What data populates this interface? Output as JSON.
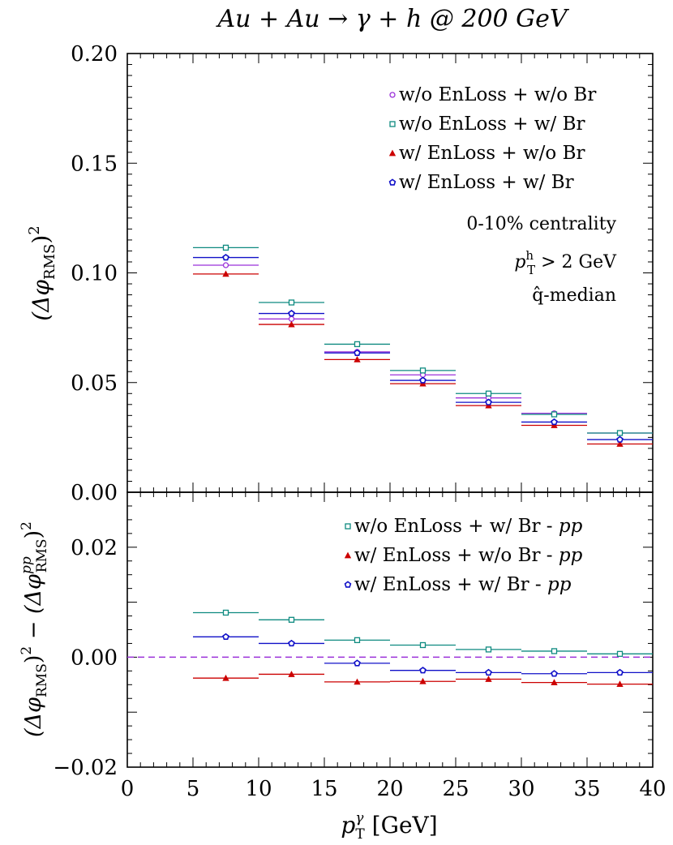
{
  "title": "Au + Au → γ + h @ 200 GeV",
  "xaxis": {
    "label": "p",
    "label_sup": "γ",
    "label_sub": "T",
    "label_unit": " [GeV]",
    "range": [
      0,
      40
    ],
    "ticks": [
      "0",
      "5",
      "10",
      "15",
      "20",
      "25",
      "30",
      "35",
      "40"
    ]
  },
  "top_panel": {
    "ylabel": {
      "text": "(Δφ",
      "sub": "RMS",
      "tail": ")",
      "sup": "2"
    },
    "ylim": [
      0,
      0.2
    ],
    "yticks": [
      "0.00",
      "0.05",
      "0.10",
      "0.15",
      "0.20"
    ],
    "annotations": {
      "centrality": "0-10% centrality",
      "cut_main": "p",
      "cut_sup": "h",
      "cut_sub": "T",
      "cut_tail": " > 2 GeV",
      "qhat": "q̂-median"
    }
  },
  "bottom_panel": {
    "ylabel": {
      "a": "(Δφ",
      "a_sub": "RMS",
      "a_tail": ")",
      "a_sup": "2",
      "mid": " − (Δφ",
      "b_sup": "pp",
      "b_sub": "RMS",
      "b_tail": ")",
      "b_sup2": "2"
    },
    "ylim": [
      -0.02,
      0.03
    ],
    "yticks": [
      "−0.02",
      "0.00",
      "0.02"
    ]
  },
  "colors": {
    "purple": "#9b30d9",
    "teal": "#0e8a80",
    "red": "#cc0000",
    "blue": "#1010c8",
    "dashed": "#9b30d9"
  },
  "chart_data": [
    {
      "type": "scatter",
      "x_bins": [
        [
          5,
          10
        ],
        [
          10,
          15
        ],
        [
          15,
          20
        ],
        [
          20,
          25
        ],
        [
          25,
          30
        ],
        [
          30,
          35
        ],
        [
          35,
          40
        ]
      ],
      "x": [
        7.5,
        12.5,
        17.5,
        22.5,
        27.5,
        32.5,
        37.5
      ],
      "ylabel": "(Δφ_RMS)^2",
      "ylim": [
        0,
        0.2
      ],
      "series": [
        {
          "name": "w/o EnLoss + w/o Br",
          "marker": "circle",
          "color": "#9b30d9",
          "values": [
            0.1035,
            0.079,
            0.064,
            0.0535,
            0.043,
            0.036,
            0.027
          ]
        },
        {
          "name": "w/o EnLoss + w/  Br",
          "marker": "square",
          "color": "#0e8a80",
          "values": [
            0.1115,
            0.0865,
            0.0675,
            0.0555,
            0.045,
            0.0355,
            0.027
          ]
        },
        {
          "name": "w/  EnLoss + w/o Br",
          "marker": "triangle",
          "color": "#cc0000",
          "values": [
            0.0995,
            0.0765,
            0.0605,
            0.0495,
            0.0395,
            0.0305,
            0.022
          ]
        },
        {
          "name": "w/  EnLoss + w/  Br",
          "marker": "pentagon",
          "color": "#1010c8",
          "values": [
            0.107,
            0.0815,
            0.0635,
            0.051,
            0.041,
            0.032,
            0.024
          ]
        }
      ]
    },
    {
      "type": "scatter",
      "x_bins": [
        [
          5,
          10
        ],
        [
          10,
          15
        ],
        [
          15,
          20
        ],
        [
          20,
          25
        ],
        [
          25,
          30
        ],
        [
          30,
          35
        ],
        [
          35,
          40
        ]
      ],
      "x": [
        7.5,
        12.5,
        17.5,
        22.5,
        27.5,
        32.5,
        37.5
      ],
      "ylabel": "(Δφ_RMS)^2 − (Δφ^pp_RMS)^2",
      "ylim": [
        -0.02,
        0.03
      ],
      "reference_line": 0,
      "series": [
        {
          "name": "w/o EnLoss + w/  Br - pp",
          "marker": "square",
          "color": "#0e8a80",
          "values": [
            0.0081,
            0.0068,
            0.0031,
            0.0022,
            0.0014,
            0.0011,
            0.0006
          ]
        },
        {
          "name": "w/  EnLoss + w/o Br - pp",
          "marker": "triangle",
          "color": "#cc0000",
          "values": [
            -0.0038,
            -0.0031,
            -0.0045,
            -0.0044,
            -0.004,
            -0.0046,
            -0.0049
          ]
        },
        {
          "name": "w/  EnLoss + w/  Br - pp",
          "marker": "pentagon",
          "color": "#1010c8",
          "values": [
            0.0037,
            0.0025,
            -0.0011,
            -0.0024,
            -0.0028,
            -0.003,
            -0.0028
          ]
        }
      ]
    }
  ]
}
